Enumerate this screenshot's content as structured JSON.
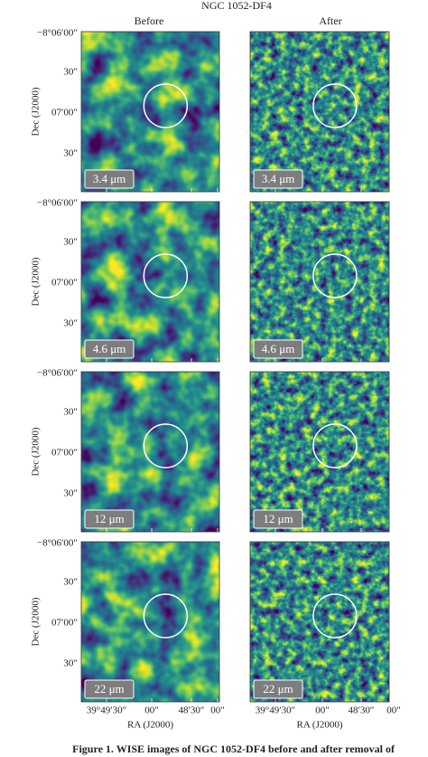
{
  "title": "NGC 1052-DF4",
  "columns": [
    "Before",
    "After"
  ],
  "rows": [
    {
      "band": "3.4 μm"
    },
    {
      "band": "4.6 μm"
    },
    {
      "band": "12 μm"
    },
    {
      "band": "22 μm"
    }
  ],
  "y_axis": {
    "label": "Dec (J2000)",
    "ticks": [
      "−8°06′00″",
      "30″",
      "07′00″",
      "30″"
    ]
  },
  "x_axis": {
    "label": "RA (J2000)",
    "ticks": [
      "39°49′30″",
      "00″",
      "48′30″",
      "00″"
    ]
  },
  "caption": "Figure 1. WISE images of NGC 1052-DF4 before and after removal of"
}
